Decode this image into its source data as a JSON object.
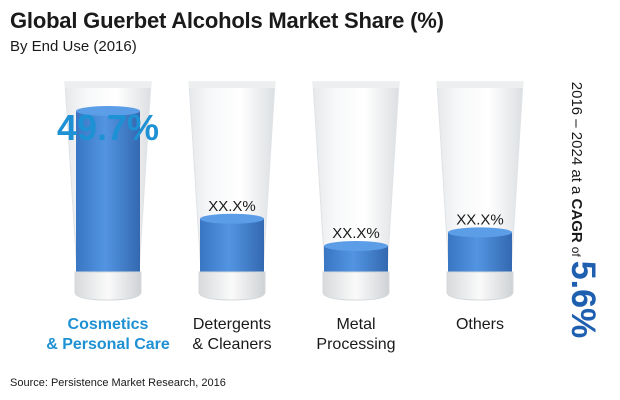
{
  "title": "Global Guerbet Alcohols Market Share (%)",
  "subtitle": "By End Use (2016)",
  "source": "Source: Persistence Market Research, 2016",
  "cagr": {
    "period_text": "2016 – 2024 at a",
    "metric": "CAGR",
    "of_text": "of",
    "value": "5.6%"
  },
  "colors": {
    "highlight": "#1e90d4",
    "fill": "#3a7fd0",
    "fill_dark": "#1f5fb0"
  },
  "chart_data": {
    "type": "bar",
    "title": "Global Guerbet Alcohols Market Share (%)",
    "subtitle": "By End Use (2016)",
    "categories": [
      "Cosmetics & Personal Care",
      "Detergents & Cleaners",
      "Metal Processing",
      "Others"
    ],
    "category_lines": [
      [
        "Cosmetics",
        "& Personal Care"
      ],
      [
        "Detergents",
        "& Cleaners"
      ],
      [
        "Metal",
        "Processing"
      ],
      [
        "Others"
      ]
    ],
    "value_labels": [
      "49.7%",
      "XX.X%",
      "XX.X%",
      "XX.X%"
    ],
    "values": [
      49.7,
      18,
      10,
      14
    ],
    "highlight_index": 0
  }
}
